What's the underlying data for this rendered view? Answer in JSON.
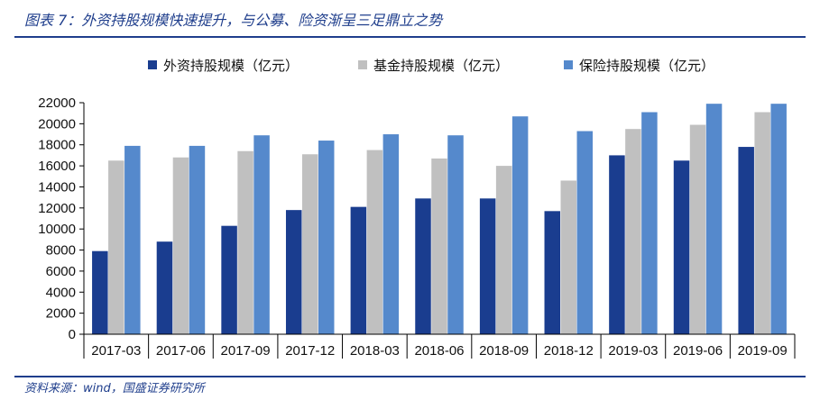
{
  "header": {
    "title": "图表 7：外资持股规模快速提升，与公募、险资渐呈三足鼎立之势"
  },
  "footer": {
    "source": "资料来源：wind，国盛证券研究所"
  },
  "chart_data": {
    "type": "bar",
    "categories": [
      "2017-03",
      "2017-06",
      "2017-09",
      "2017-12",
      "2018-03",
      "2018-06",
      "2018-09",
      "2018-12",
      "2019-03",
      "2019-06",
      "2019-09"
    ],
    "series": [
      {
        "name": "外资持股规模（亿元）",
        "color": "#1a3d8f",
        "values": [
          7900,
          8800,
          10300,
          11800,
          12100,
          12900,
          12900,
          11700,
          17000,
          16500,
          17800
        ]
      },
      {
        "name": "基金持股规模（亿元）",
        "color": "#c0c0c0",
        "values": [
          16500,
          16800,
          17400,
          17100,
          17500,
          16700,
          16000,
          14600,
          19500,
          19900,
          21100
        ]
      },
      {
        "name": "保险持股规模（亿元）",
        "color": "#5589cc",
        "values": [
          17900,
          17900,
          18900,
          18400,
          19000,
          18900,
          20700,
          19300,
          21100,
          21900,
          21900
        ]
      }
    ],
    "ylim": [
      0,
      22000
    ],
    "yticks": [
      0,
      2000,
      4000,
      6000,
      8000,
      10000,
      12000,
      14000,
      16000,
      18000,
      20000,
      22000
    ],
    "xlabel": "",
    "ylabel": "",
    "legend_position": "top",
    "grid": false
  }
}
